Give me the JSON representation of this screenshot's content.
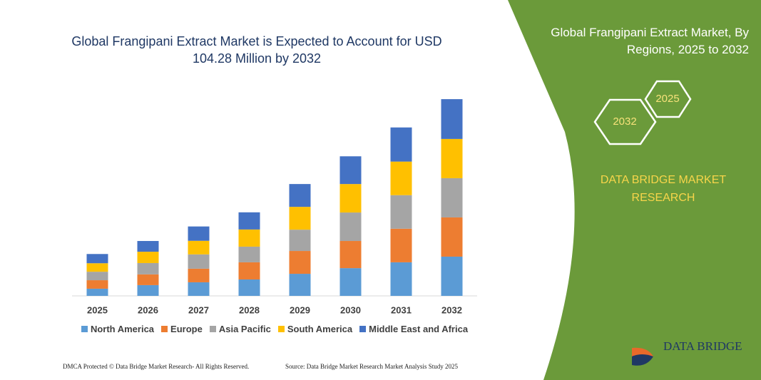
{
  "chart_data": {
    "type": "bar",
    "stacked": true,
    "title": "Global Frangipani Extract Market is Expected to Account for USD 104.28 Million by 2032",
    "categories": [
      "2025",
      "2026",
      "2027",
      "2028",
      "2029",
      "2030",
      "2031",
      "2032"
    ],
    "series": [
      {
        "name": "North America",
        "color": "#5b9bd5",
        "values": [
          3.8,
          5.7,
          7.2,
          8.7,
          11.7,
          14.7,
          17.8,
          20.8
        ]
      },
      {
        "name": "Europe",
        "color": "#ed7d31",
        "values": [
          4.5,
          5.7,
          7.2,
          9.1,
          12.1,
          14.4,
          17.8,
          20.8
        ]
      },
      {
        "name": "Asia Pacific",
        "color": "#a5a5a5",
        "values": [
          4.5,
          6.0,
          7.6,
          8.3,
          11.3,
          15.1,
          17.8,
          20.8
        ]
      },
      {
        "name": "South America",
        "color": "#ffc000",
        "values": [
          4.5,
          6.0,
          7.2,
          9.1,
          12.1,
          15.1,
          17.8,
          20.8
        ]
      },
      {
        "name": "Middle East and Africa",
        "color": "#4472c4",
        "values": [
          4.9,
          5.7,
          7.6,
          9.1,
          12.1,
          14.7,
          18.1,
          21.1
        ]
      }
    ],
    "ylim": [
      0,
      110
    ],
    "grid": false,
    "legend": "bottom"
  },
  "panel": {
    "heading": "Global Frangipani Extract Market, By Regions, 2025 to 2032",
    "hexagons": [
      "2025",
      "2032"
    ],
    "brand": "DATA BRIDGE MARKET RESEARCH"
  },
  "logo": {
    "text": "DATA BRIDGE"
  },
  "footer": {
    "left": "DMCA Protected © Data Bridge Market Research-  All Rights Reserved.",
    "right": "Source: Data Bridge Market Research  Market Analysis Study 2025"
  }
}
